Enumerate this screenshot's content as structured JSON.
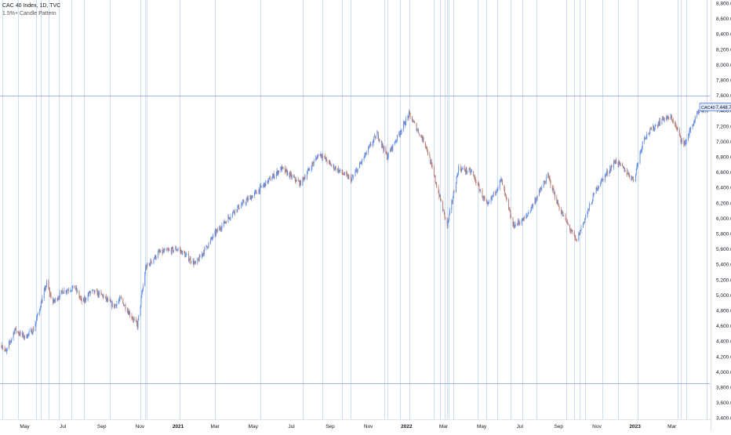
{
  "legend": {
    "title": "CAC 40 Index, 1D, TVC",
    "indicator": "1.5%+ Candle Pattern"
  },
  "price_tag": {
    "symbol": "CAC40",
    "value": "7,448.70"
  },
  "colors": {
    "up": "#5b8def",
    "down": "#b5796f",
    "vline": "#cfdcf7",
    "hline": "#9db5e8",
    "axis_text": "#131722",
    "tag_bg": "#dfe8fb",
    "tag_border": "#2962ff"
  },
  "chart_data": {
    "type": "candlestick",
    "title": "CAC 40 Index, 1D, TVC",
    "ylim": [
      3300,
      8800
    ],
    "y_ticks": [
      3400,
      3600,
      3800,
      4000,
      4200,
      4400,
      4600,
      4800,
      5000,
      5200,
      5400,
      5600,
      5800,
      6000,
      6200,
      6400,
      6600,
      6800,
      7000,
      7200,
      7400,
      7600,
      7800,
      8000,
      8200,
      8400,
      8600,
      8800
    ],
    "y_tick_labels": [
      "3,400.00",
      "3,600.00",
      "3,800.00",
      "4,000.00",
      "4,200.00",
      "4,400.00",
      "4,600.00",
      "4,800.00",
      "5,000.00",
      "5,200.00",
      "5,400.00",
      "5,600.00",
      "5,800.00",
      "6,000.00",
      "6,200.00",
      "6,400.00",
      "6,600.00",
      "6,800.00",
      "7,000.00",
      "7,200.00",
      "7,400.00",
      "7,600.00",
      "7,800.00",
      "8,000.00",
      "8,200.00",
      "8,400.00",
      "8,600.00",
      "8,800.00"
    ],
    "x_ticks": [
      {
        "label": "May",
        "date": "2020-05-01"
      },
      {
        "label": "Jul",
        "date": "2020-07-01"
      },
      {
        "label": "Sep",
        "date": "2020-09-01"
      },
      {
        "label": "Nov",
        "date": "2020-11-01"
      },
      {
        "label": "2021",
        "date": "2021-01-01"
      },
      {
        "label": "Mar",
        "date": "2021-03-01"
      },
      {
        "label": "May",
        "date": "2021-05-01"
      },
      {
        "label": "Jul",
        "date": "2021-07-01"
      },
      {
        "label": "Sep",
        "date": "2021-09-01"
      },
      {
        "label": "Nov",
        "date": "2021-11-01"
      },
      {
        "label": "2022",
        "date": "2022-01-01"
      },
      {
        "label": "Mar",
        "date": "2022-03-01"
      },
      {
        "label": "May",
        "date": "2022-05-01"
      },
      {
        "label": "Jul",
        "date": "2022-07-01"
      },
      {
        "label": "Sep",
        "date": "2022-09-01"
      },
      {
        "label": "Nov",
        "date": "2022-11-01"
      },
      {
        "label": "2023",
        "date": "2023-01-01"
      },
      {
        "label": "Mar",
        "date": "2023-03-01"
      }
    ],
    "x_range": [
      "2020-03-25",
      "2023-04-28"
    ],
    "path": [
      {
        "date": "2020-03-25",
        "v": 4350
      },
      {
        "date": "2020-04-01",
        "v": 4250
      },
      {
        "date": "2020-04-15",
        "v": 4550
      },
      {
        "date": "2020-05-01",
        "v": 4450
      },
      {
        "date": "2020-05-15",
        "v": 4550
      },
      {
        "date": "2020-06-05",
        "v": 5150
      },
      {
        "date": "2020-06-15",
        "v": 4900
      },
      {
        "date": "2020-07-01",
        "v": 5050
      },
      {
        "date": "2020-07-20",
        "v": 5100
      },
      {
        "date": "2020-08-01",
        "v": 4900
      },
      {
        "date": "2020-08-15",
        "v": 5050
      },
      {
        "date": "2020-09-01",
        "v": 5000
      },
      {
        "date": "2020-09-20",
        "v": 4850
      },
      {
        "date": "2020-10-01",
        "v": 4950
      },
      {
        "date": "2020-10-28",
        "v": 4600
      },
      {
        "date": "2020-11-10",
        "v": 5350
      },
      {
        "date": "2020-12-01",
        "v": 5550
      },
      {
        "date": "2021-01-01",
        "v": 5600
      },
      {
        "date": "2021-01-29",
        "v": 5400
      },
      {
        "date": "2021-03-01",
        "v": 5800
      },
      {
        "date": "2021-04-01",
        "v": 6100
      },
      {
        "date": "2021-05-01",
        "v": 6300
      },
      {
        "date": "2021-06-15",
        "v": 6650
      },
      {
        "date": "2021-07-15",
        "v": 6450
      },
      {
        "date": "2021-08-15",
        "v": 6850
      },
      {
        "date": "2021-09-01",
        "v": 6700
      },
      {
        "date": "2021-10-05",
        "v": 6500
      },
      {
        "date": "2021-11-15",
        "v": 7100
      },
      {
        "date": "2021-12-01",
        "v": 6800
      },
      {
        "date": "2022-01-05",
        "v": 7350
      },
      {
        "date": "2022-02-01",
        "v": 6950
      },
      {
        "date": "2022-03-07",
        "v": 5900
      },
      {
        "date": "2022-03-25",
        "v": 6650
      },
      {
        "date": "2022-04-15",
        "v": 6600
      },
      {
        "date": "2022-05-10",
        "v": 6150
      },
      {
        "date": "2022-06-01",
        "v": 6500
      },
      {
        "date": "2022-06-20",
        "v": 5900
      },
      {
        "date": "2022-07-10",
        "v": 6000
      },
      {
        "date": "2022-08-15",
        "v": 6550
      },
      {
        "date": "2022-09-01",
        "v": 6150
      },
      {
        "date": "2022-09-29",
        "v": 5700
      },
      {
        "date": "2022-11-01",
        "v": 6400
      },
      {
        "date": "2022-12-01",
        "v": 6750
      },
      {
        "date": "2022-12-30",
        "v": 6500
      },
      {
        "date": "2023-01-15",
        "v": 7050
      },
      {
        "date": "2023-02-15",
        "v": 7300
      },
      {
        "date": "2023-03-01",
        "v": 7300
      },
      {
        "date": "2023-03-20",
        "v": 6950
      },
      {
        "date": "2023-04-10",
        "v": 7350
      },
      {
        "date": "2023-04-28",
        "v": 7450
      }
    ],
    "horizontal_lines": [
      7600,
      3850
    ],
    "pattern_dates": [
      "2020-03-26",
      "2020-04-20",
      "2020-05-19",
      "2020-05-27",
      "2020-06-08",
      "2020-06-25",
      "2020-07-14",
      "2020-08-03",
      "2020-09-14",
      "2020-11-02",
      "2020-11-09",
      "2020-11-12",
      "2021-01-04",
      "2021-03-01",
      "2021-05-12",
      "2021-07-19",
      "2021-08-19",
      "2021-09-20",
      "2021-10-04",
      "2021-11-26",
      "2021-12-02",
      "2021-12-21",
      "2022-01-05",
      "2022-02-14",
      "2022-02-24",
      "2022-03-03",
      "2022-03-07",
      "2022-03-09",
      "2022-03-17",
      "2022-04-25",
      "2022-05-09",
      "2022-05-26",
      "2022-06-16",
      "2022-07-05",
      "2022-07-28",
      "2022-09-13",
      "2022-09-26",
      "2022-10-04",
      "2022-10-13",
      "2022-11-10",
      "2022-12-05",
      "2023-01-05",
      "2023-03-10",
      "2023-03-15",
      "2023-03-24",
      "2023-04-26"
    ],
    "grid": false,
    "legend": "top-left"
  }
}
